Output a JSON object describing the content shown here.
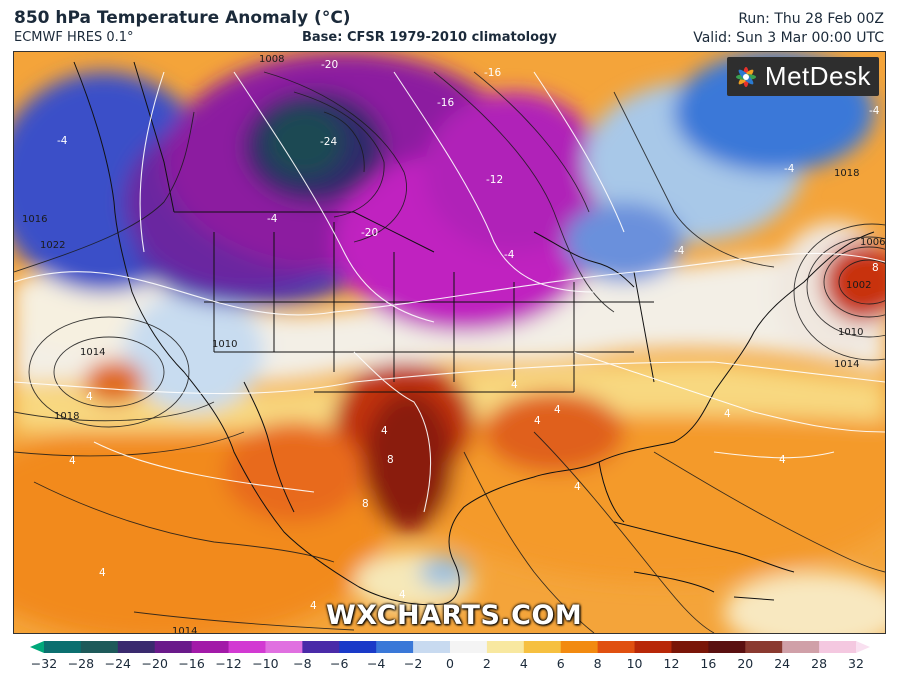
{
  "header": {
    "title": "850 hPa Temperature Anomaly (°C)",
    "subtitle": "ECMWF HRES 0.1°",
    "base": "Base: CFSR 1979-2010 climatology",
    "run": "Run: Thu 28 Feb 00Z",
    "valid": "Valid: Sun 3 Mar 00:00 UTC"
  },
  "logo": {
    "text": "MetDesk",
    "icon": "metdesk-flower-icon"
  },
  "watermark": "WXCHARTS.COM",
  "colorbar": {
    "ticks": [
      "−32",
      "−28",
      "−24",
      "−20",
      "−16",
      "−12",
      "−10",
      "−8",
      "−6",
      "−4",
      "−2",
      "0",
      "2",
      "4",
      "6",
      "8",
      "10",
      "12",
      "16",
      "20",
      "24",
      "28",
      "32"
    ],
    "colors": [
      "#00a87a",
      "#0b6f6f",
      "#1e5a5a",
      "#3a2a6e",
      "#6a1a8a",
      "#a21aa8",
      "#d23ad2",
      "#e070e0",
      "#4a2aa8",
      "#1a3ac8",
      "#3a78d8",
      "#c8daf0",
      "#f4f4f4",
      "#f8e8a0",
      "#f6c040",
      "#f28a10",
      "#e05010",
      "#b82808",
      "#7a1608",
      "#5a1010",
      "#8a3a30",
      "#d0a0a8",
      "#f4c8e0",
      "#f9e0f0"
    ]
  },
  "map": {
    "isobar_labels": [
      "1008",
      "1016",
      "1014",
      "1010",
      "1018",
      "1018",
      "1006",
      "1002",
      "1010",
      "1014",
      "1014",
      "1022"
    ],
    "anomaly_labels": [
      "-20",
      "-16",
      "-16",
      "-24",
      "-12",
      "-20",
      "-4",
      "-4",
      "-4",
      "-4",
      "-4",
      "-4",
      "4",
      "4",
      "4",
      "4",
      "4",
      "4",
      "4",
      "8",
      "8",
      "8",
      "4",
      "4",
      "4",
      "4",
      "4"
    ]
  }
}
